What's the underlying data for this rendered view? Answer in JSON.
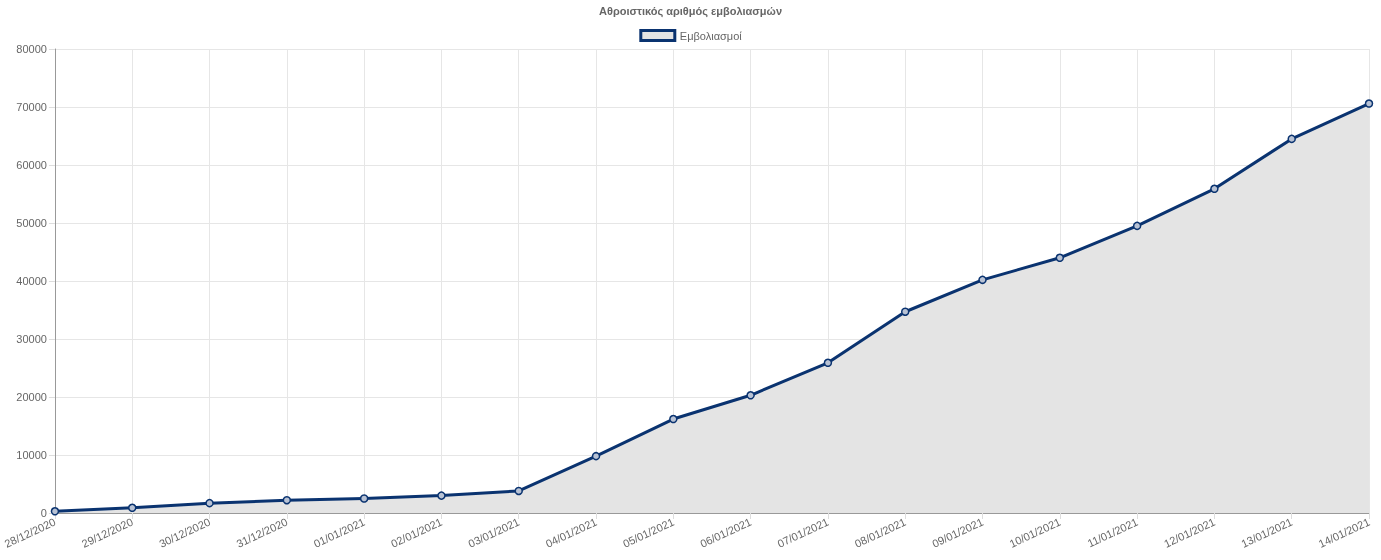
{
  "chart_data": {
    "type": "area",
    "title": "Αθροιστικός αριθμός εμβολιασμών",
    "categories": [
      "28/12/2020",
      "29/12/2020",
      "30/12/2020",
      "31/12/2020",
      "01/01/2021",
      "02/01/2021",
      "03/01/2021",
      "04/01/2021",
      "05/01/2021",
      "06/01/2021",
      "07/01/2021",
      "08/01/2021",
      "09/01/2021",
      "10/01/2021",
      "11/01/2021",
      "12/01/2021",
      "13/01/2021",
      "14/01/2021"
    ],
    "series": [
      {
        "name": "Εμβολιασμοί",
        "color": "#0a3370",
        "values": [
          300,
          900,
          1700,
          2200,
          2500,
          3000,
          3800,
          9800,
          16200,
          20300,
          25900,
          34700,
          40200,
          44000,
          49500,
          55900,
          64500,
          70600
        ]
      }
    ],
    "ylim": [
      0,
      80000
    ],
    "yticks": [
      0,
      10000,
      20000,
      30000,
      40000,
      50000,
      60000,
      70000,
      80000
    ],
    "grid": true,
    "legend": "top",
    "marker": "circle",
    "line_style": "solid"
  }
}
